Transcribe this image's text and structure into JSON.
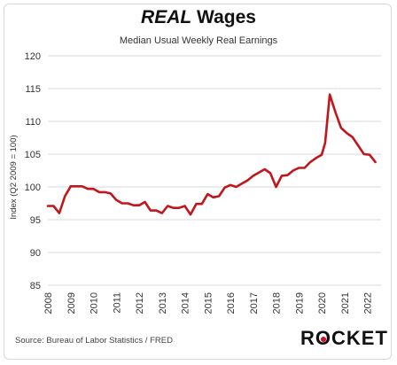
{
  "title_emph": "REAL",
  "title_rest": " Wages",
  "subtitle": "Median Usual Weekly Real Earnings",
  "ylabel": "Index (Q2 2009 = 100)",
  "source": "Source: Bureau  of Labor Statistics / FRED",
  "logo": {
    "text_before": "R",
    "text_o": "O",
    "text_after": "CKET",
    "accent": "#c8102e"
  },
  "colors": {
    "line": "#c0161c",
    "grid": "#d9d9d9"
  },
  "chart_data": {
    "type": "line",
    "title": "REAL Wages",
    "subtitle": "Median Usual Weekly Real Earnings",
    "ylabel": "Index (Q2 2009 = 100)",
    "xlabel": "",
    "ylim": [
      85,
      120
    ],
    "yticks": [
      85,
      90,
      95,
      100,
      105,
      110,
      115,
      120
    ],
    "xlim": [
      2008,
      2022.6
    ],
    "xticks": [
      2008,
      2009,
      2010,
      2011,
      2012,
      2013,
      2014,
      2015,
      2016,
      2017,
      2018,
      2019,
      2020,
      2021,
      2022
    ],
    "grid": "horizontal",
    "series": [
      {
        "values": [
          [
            2008.0,
            97.1
          ],
          [
            2008.25,
            97.1
          ],
          [
            2008.5,
            96.0
          ],
          [
            2008.75,
            98.6
          ],
          [
            2009.0,
            100.1
          ],
          [
            2009.25,
            100.1
          ],
          [
            2009.5,
            100.1
          ],
          [
            2009.75,
            99.7
          ],
          [
            2010.0,
            99.7
          ],
          [
            2010.25,
            99.2
          ],
          [
            2010.5,
            99.2
          ],
          [
            2010.75,
            99.0
          ],
          [
            2011.0,
            98.0
          ],
          [
            2011.25,
            97.5
          ],
          [
            2011.5,
            97.5
          ],
          [
            2011.75,
            97.2
          ],
          [
            2012.0,
            97.2
          ],
          [
            2012.25,
            97.7
          ],
          [
            2012.5,
            96.4
          ],
          [
            2012.75,
            96.4
          ],
          [
            2013.0,
            96.0
          ],
          [
            2013.25,
            97.1
          ],
          [
            2013.5,
            96.8
          ],
          [
            2013.75,
            96.8
          ],
          [
            2014.0,
            97.1
          ],
          [
            2014.25,
            95.8
          ],
          [
            2014.5,
            97.4
          ],
          [
            2014.75,
            97.4
          ],
          [
            2015.0,
            98.9
          ],
          [
            2015.25,
            98.4
          ],
          [
            2015.5,
            98.6
          ],
          [
            2015.75,
            99.9
          ],
          [
            2016.0,
            100.3
          ],
          [
            2016.25,
            100.0
          ],
          [
            2016.5,
            100.5
          ],
          [
            2016.75,
            101.0
          ],
          [
            2017.0,
            101.7
          ],
          [
            2017.25,
            102.2
          ],
          [
            2017.5,
            102.7
          ],
          [
            2017.75,
            102.1
          ],
          [
            2018.0,
            100.0
          ],
          [
            2018.25,
            101.7
          ],
          [
            2018.5,
            101.8
          ],
          [
            2018.75,
            102.5
          ],
          [
            2019.0,
            102.9
          ],
          [
            2019.25,
            102.9
          ],
          [
            2019.5,
            103.8
          ],
          [
            2019.75,
            104.4
          ],
          [
            2020.0,
            104.9
          ],
          [
            2020.15,
            106.7
          ],
          [
            2020.35,
            114.1
          ],
          [
            2020.6,
            111.4
          ],
          [
            2020.85,
            109.0
          ],
          [
            2021.1,
            108.2
          ],
          [
            2021.35,
            107.6
          ],
          [
            2021.6,
            106.3
          ],
          [
            2021.85,
            105.0
          ],
          [
            2022.1,
            104.9
          ],
          [
            2022.35,
            103.8
          ]
        ]
      }
    ]
  }
}
